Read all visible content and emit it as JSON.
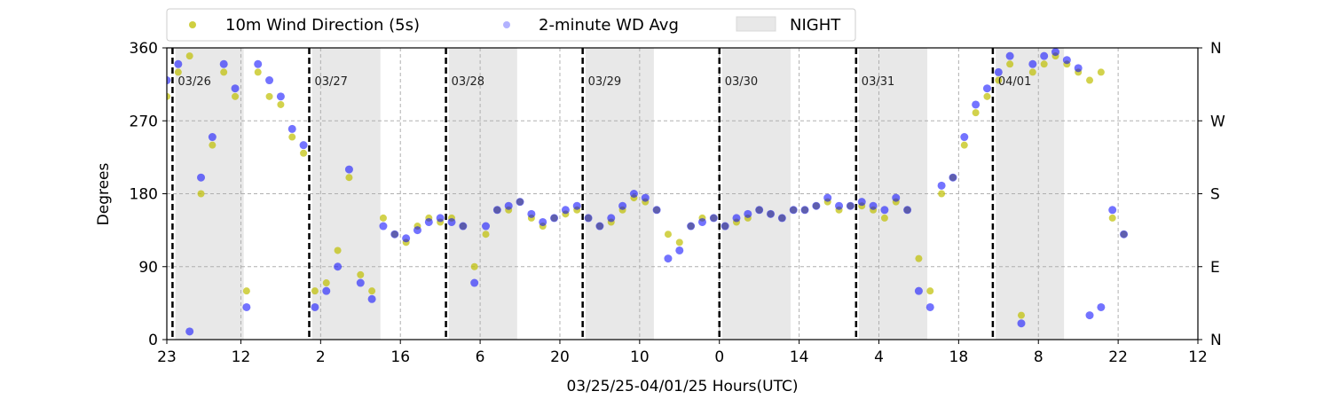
{
  "chart_data": {
    "type": "scatter",
    "xlabel": "03/25/25-04/01/25  Hours(UTC)",
    "ylabel": "Degrees",
    "ylim": [
      0,
      360
    ],
    "x_range_hours": [
      -1,
      180
    ],
    "yticks": [
      0,
      90,
      180,
      270,
      360
    ],
    "yticks_right": [
      {
        "value": 0,
        "label": "N"
      },
      {
        "value": 90,
        "label": "E"
      },
      {
        "value": 180,
        "label": "S"
      },
      {
        "value": 270,
        "label": "W"
      },
      {
        "value": 360,
        "label": "N"
      }
    ],
    "xticks": [
      {
        "hour": -1,
        "label": "23"
      },
      {
        "hour": 12,
        "label": "12"
      },
      {
        "hour": 26,
        "label": "2"
      },
      {
        "hour": 40,
        "label": "16"
      },
      {
        "hour": 54,
        "label": "6"
      },
      {
        "hour": 68,
        "label": "20"
      },
      {
        "hour": 82,
        "label": "10"
      },
      {
        "hour": 96,
        "label": "0"
      },
      {
        "hour": 110,
        "label": "14"
      },
      {
        "hour": 124,
        "label": "4"
      },
      {
        "hour": 138,
        "label": "18"
      },
      {
        "hour": 152,
        "label": "8"
      },
      {
        "hour": 166,
        "label": "22"
      },
      {
        "hour": 180,
        "label": "12"
      }
    ],
    "day_markers": [
      {
        "hour": 0,
        "label": "03/26"
      },
      {
        "hour": 24,
        "label": "03/27"
      },
      {
        "hour": 48,
        "label": "03/28"
      },
      {
        "hour": 72,
        "label": "03/29"
      },
      {
        "hour": 96,
        "label": "03/30"
      },
      {
        "hour": 120,
        "label": "03/31"
      },
      {
        "hour": 144,
        "label": "04/01"
      }
    ],
    "night_spans": [
      [
        0.5,
        12.5
      ],
      [
        24.5,
        36.5
      ],
      [
        48.5,
        60.5
      ],
      [
        72.5,
        84.5
      ],
      [
        96.5,
        108.5
      ],
      [
        120.5,
        132.5
      ],
      [
        144.5,
        156.5
      ]
    ],
    "grid": true,
    "legend_position": "top",
    "legend": [
      {
        "label": "10m Wind Direction (5s)",
        "color": "#bfbf00",
        "marker": "dot"
      },
      {
        "label": "2-minute WD Avg",
        "color": "#0000ff",
        "marker": "dot"
      },
      {
        "label": "NIGHT",
        "color": "#e8e8e8",
        "marker": "patch"
      }
    ],
    "series": [
      {
        "name": "10m Wind Direction (5s)",
        "color": "#bfbf00",
        "x": [
          -1,
          1,
          3,
          5,
          7,
          9,
          11,
          13,
          15,
          17,
          19,
          21,
          23,
          25,
          27,
          29,
          31,
          33,
          35,
          37,
          39,
          41,
          43,
          45,
          47,
          49,
          51,
          53,
          55,
          57,
          59,
          61,
          63,
          65,
          67,
          69,
          71,
          73,
          75,
          77,
          79,
          81,
          83,
          85,
          87,
          89,
          91,
          93,
          95,
          97,
          99,
          101,
          103,
          105,
          107,
          109,
          111,
          113,
          115,
          117,
          119,
          121,
          123,
          125,
          127,
          129,
          131,
          133,
          135,
          137,
          139,
          141,
          143,
          145,
          147,
          149,
          151,
          153,
          155,
          157,
          159,
          161,
          163,
          165,
          167
        ],
        "y": [
          300,
          330,
          350,
          180,
          240,
          330,
          300,
          60,
          330,
          300,
          290,
          250,
          230,
          60,
          70,
          110,
          200,
          80,
          60,
          150,
          130,
          120,
          140,
          150,
          145,
          150,
          140,
          90,
          130,
          160,
          160,
          170,
          150,
          140,
          150,
          155,
          160,
          150,
          140,
          145,
          160,
          175,
          170,
          160,
          130,
          120,
          140,
          150,
          150,
          140,
          145,
          150,
          160,
          155,
          150,
          160,
          160,
          165,
          170,
          160,
          165,
          165,
          160,
          150,
          170,
          160,
          100,
          60,
          180,
          200,
          240,
          280,
          300,
          320,
          340,
          30,
          330,
          340,
          350,
          340,
          330,
          320,
          330,
          150,
          130
        ]
      },
      {
        "name": "2-minute WD Avg",
        "color": "#0000ff",
        "x": [
          -1,
          1,
          3,
          5,
          7,
          9,
          11,
          13,
          15,
          17,
          19,
          21,
          23,
          25,
          27,
          29,
          31,
          33,
          35,
          37,
          39,
          41,
          43,
          45,
          47,
          49,
          51,
          53,
          55,
          57,
          59,
          61,
          63,
          65,
          67,
          69,
          71,
          73,
          75,
          77,
          79,
          81,
          83,
          85,
          87,
          89,
          91,
          93,
          95,
          97,
          99,
          101,
          103,
          105,
          107,
          109,
          111,
          113,
          115,
          117,
          119,
          121,
          123,
          125,
          127,
          129,
          131,
          133,
          135,
          137,
          139,
          141,
          143,
          145,
          147,
          149,
          151,
          153,
          155,
          157,
          159,
          161,
          163,
          165,
          167
        ],
        "y": [
          320,
          340,
          10,
          200,
          250,
          340,
          310,
          40,
          340,
          320,
          300,
          260,
          240,
          40,
          60,
          90,
          210,
          70,
          50,
          140,
          130,
          125,
          135,
          145,
          150,
          145,
          140,
          70,
          140,
          160,
          165,
          170,
          155,
          145,
          150,
          160,
          165,
          150,
          140,
          150,
          165,
          180,
          175,
          160,
          100,
          110,
          140,
          145,
          150,
          140,
          150,
          155,
          160,
          155,
          150,
          160,
          160,
          165,
          175,
          165,
          165,
          170,
          165,
          160,
          175,
          160,
          60,
          40,
          190,
          200,
          250,
          290,
          310,
          330,
          350,
          20,
          340,
          350,
          355,
          345,
          335,
          30,
          40,
          160,
          130
        ]
      }
    ]
  }
}
